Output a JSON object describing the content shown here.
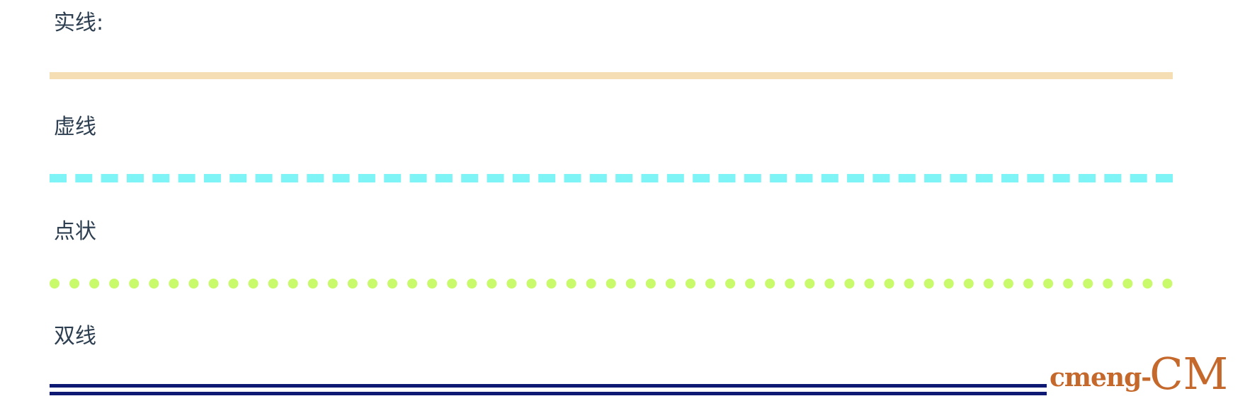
{
  "sections": [
    {
      "label": "实线:",
      "style": "solid",
      "color": "#f5deb3"
    },
    {
      "label": "虚线",
      "style": "dashed",
      "color": "#7ef4f7"
    },
    {
      "label": "点状",
      "style": "dotted",
      "color": "#c8fa6c"
    },
    {
      "label": "双线",
      "style": "double",
      "color": "#0d1972"
    }
  ],
  "watermark": {
    "prefix": "cmeng-",
    "suffix": "CM",
    "color": "#c5682b"
  }
}
